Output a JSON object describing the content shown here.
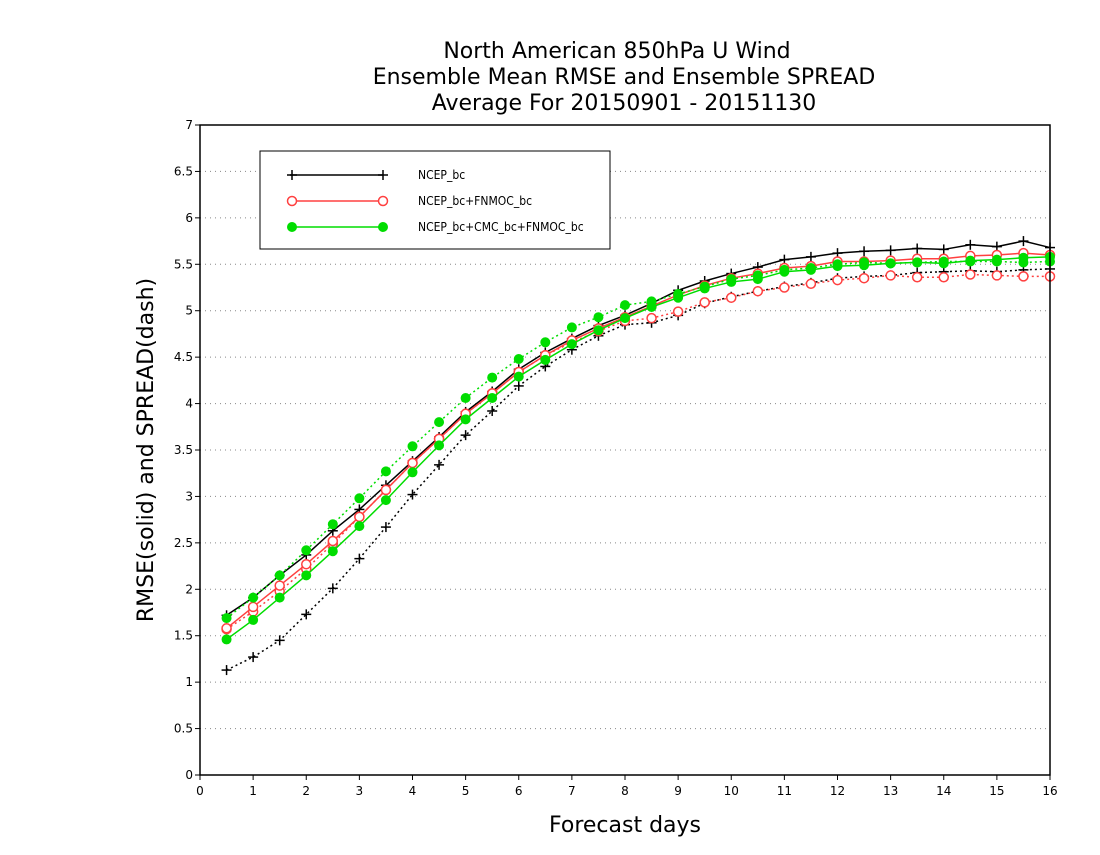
{
  "chart_data": {
    "type": "line",
    "title": [
      "North American 850hPa U Wind",
      "Ensemble Mean RMSE and Ensemble SPREAD",
      "Average For 20150901 - 20151130"
    ],
    "xlabel": "Forecast days",
    "ylabel": "RMSE(solid) and SPREAD(dash)",
    "xlim": [
      0,
      16
    ],
    "ylim": [
      0,
      7
    ],
    "xticks": [
      0,
      1,
      2,
      3,
      4,
      5,
      6,
      7,
      8,
      9,
      10,
      11,
      12,
      13,
      14,
      15,
      16
    ],
    "yticks": [
      0,
      0.5,
      1,
      1.5,
      2,
      2.5,
      3,
      3.5,
      4,
      4.5,
      5,
      5.5,
      6,
      6.5,
      7
    ],
    "ytick_labels": [
      "0",
      "0.5",
      "1",
      "1.5",
      "2",
      "2.5",
      "3",
      "3.5",
      "4",
      "4.5",
      "5",
      "5.5",
      "6",
      "6.5",
      "7"
    ],
    "grid": "horizontal dotted",
    "legend_position": "top-left",
    "x": [
      0.5,
      1,
      1.5,
      2,
      2.5,
      3,
      3.5,
      4,
      4.5,
      5,
      5.5,
      6,
      6.5,
      7,
      7.5,
      8,
      8.5,
      9,
      9.5,
      10,
      10.5,
      11,
      11.5,
      12,
      12.5,
      13,
      13.5,
      14,
      14.5,
      15,
      15.5,
      16
    ],
    "series": [
      {
        "name": "NCEP_bc",
        "color": "#000000",
        "marker": "plus",
        "rmse": [
          1.72,
          1.91,
          2.15,
          2.37,
          2.63,
          2.86,
          3.12,
          3.38,
          3.64,
          3.91,
          4.13,
          4.37,
          4.55,
          4.7,
          4.84,
          4.95,
          5.08,
          5.22,
          5.32,
          5.4,
          5.47,
          5.55,
          5.58,
          5.62,
          5.64,
          5.65,
          5.67,
          5.66,
          5.71,
          5.69,
          5.75,
          5.68
        ],
        "spread": [
          1.13,
          1.27,
          1.45,
          1.73,
          2.01,
          2.33,
          2.67,
          3.02,
          3.34,
          3.66,
          3.92,
          4.19,
          4.4,
          4.58,
          4.73,
          4.85,
          4.87,
          4.95,
          5.08,
          5.15,
          5.21,
          5.26,
          5.3,
          5.35,
          5.37,
          5.38,
          5.41,
          5.42,
          5.43,
          5.42,
          5.44,
          5.45
        ]
      },
      {
        "name": "NCEP_bc+FNMOC_bc",
        "color": "#ff4040",
        "marker": "open-circle",
        "rmse": [
          1.58,
          1.81,
          2.04,
          2.27,
          2.52,
          2.78,
          3.07,
          3.36,
          3.62,
          3.89,
          4.11,
          4.34,
          4.52,
          4.68,
          4.81,
          4.93,
          5.05,
          5.17,
          5.27,
          5.35,
          5.4,
          5.46,
          5.48,
          5.53,
          5.53,
          5.54,
          5.56,
          5.56,
          5.59,
          5.6,
          5.62,
          5.6
        ],
        "spread": [
          1.57,
          1.76,
          1.98,
          2.22,
          2.49,
          2.78,
          3.07,
          3.36,
          3.62,
          3.89,
          4.11,
          4.34,
          4.52,
          4.66,
          4.78,
          4.89,
          4.92,
          4.99,
          5.09,
          5.14,
          5.21,
          5.25,
          5.29,
          5.33,
          5.35,
          5.38,
          5.36,
          5.36,
          5.39,
          5.38,
          5.37,
          5.37
        ]
      },
      {
        "name": "NCEP_bc+CMC_bc+FNMOC_bc",
        "color": "#00dd00",
        "marker": "filled-circle",
        "rmse": [
          1.46,
          1.67,
          1.91,
          2.15,
          2.41,
          2.68,
          2.96,
          3.26,
          3.55,
          3.83,
          4.06,
          4.29,
          4.47,
          4.64,
          4.79,
          4.92,
          5.04,
          5.14,
          5.24,
          5.31,
          5.34,
          5.42,
          5.44,
          5.48,
          5.49,
          5.51,
          5.52,
          5.51,
          5.54,
          5.55,
          5.57,
          5.58
        ],
        "spread": [
          1.69,
          1.91,
          2.15,
          2.42,
          2.7,
          2.98,
          3.27,
          3.54,
          3.8,
          4.06,
          4.28,
          4.48,
          4.66,
          4.82,
          4.93,
          5.06,
          5.1,
          5.18,
          5.26,
          5.34,
          5.38,
          5.44,
          5.46,
          5.5,
          5.52,
          5.51,
          5.52,
          5.53,
          5.53,
          5.53,
          5.52,
          5.53
        ]
      }
    ]
  }
}
